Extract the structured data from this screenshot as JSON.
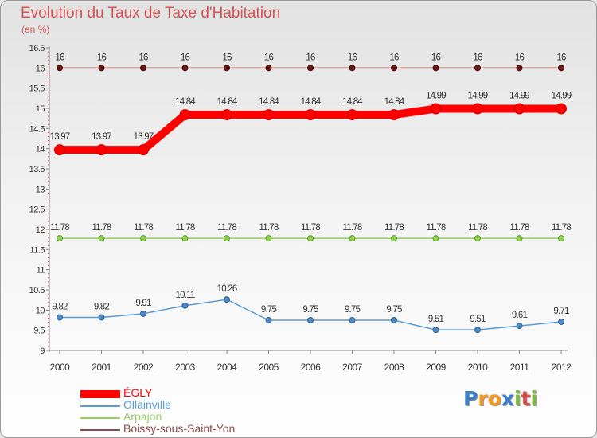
{
  "title": "Evolution du Taux de Taxe d'Habitation",
  "subtitle": "(en %)",
  "logo": {
    "letters": [
      "P",
      "r",
      "o",
      "x",
      "i",
      "t",
      "i"
    ],
    "colors": [
      "#3a7fc9",
      "#f29a20",
      "#f29a20",
      "#3a7fc9",
      "#7dbb3a",
      "#d94c4c",
      "#7dbb3a"
    ]
  },
  "chart_data": {
    "type": "line",
    "x": [
      "2000",
      "2001",
      "2002",
      "2003",
      "2004",
      "2005",
      "2006",
      "2007",
      "2008",
      "2009",
      "2010",
      "2011",
      "2012"
    ],
    "ylim": [
      9,
      16.5
    ],
    "yticks": [
      "9",
      "9.5",
      "10",
      "10.5",
      "11",
      "11.5",
      "12",
      "12.5",
      "13",
      "13.5",
      "14",
      "14.5",
      "15",
      "15.5",
      "16",
      "16.5"
    ],
    "grid": false,
    "legend_position": "bottom-left",
    "series": [
      {
        "name": "ÉGLY",
        "color": "#ff0000",
        "values": [
          13.97,
          13.97,
          13.97,
          14.84,
          14.84,
          14.84,
          14.84,
          14.84,
          14.84,
          14.99,
          14.99,
          14.99,
          14.99
        ],
        "labels": [
          "13.97",
          "13.97",
          "13.97",
          "14.84",
          "14.84",
          "14.84",
          "14.84",
          "14.84",
          "14.84",
          "14.99",
          "14.99",
          "14.99",
          "14.99"
        ]
      },
      {
        "name": "Ollainville",
        "color": "#5b9bd5",
        "values": [
          9.82,
          9.82,
          9.91,
          10.11,
          10.26,
          9.75,
          9.75,
          9.75,
          9.75,
          9.51,
          9.51,
          9.61,
          9.71
        ],
        "labels": [
          "9.82",
          "9.82",
          "9.91",
          "10.11",
          "10.26",
          "9.75",
          "9.75",
          "9.75",
          "9.75",
          "9.51",
          "9.51",
          "9.61",
          "9.71"
        ]
      },
      {
        "name": "Arpajon",
        "color": "#99cc66",
        "values": [
          11.78,
          11.78,
          11.78,
          11.78,
          11.78,
          11.78,
          11.78,
          11.78,
          11.78,
          11.78,
          11.78,
          11.78,
          11.78
        ],
        "labels": [
          "11.78",
          "11.78",
          "11.78",
          "11.78",
          "11.78",
          "11.78",
          "11.78",
          "11.78",
          "11.78",
          "11.78",
          "11.78",
          "11.78",
          "11.78"
        ]
      },
      {
        "name": "Boissy-sous-Saint-Yon",
        "color": "#8b4a4a",
        "values": [
          16,
          16,
          16,
          16,
          16,
          16,
          16,
          16,
          16,
          16,
          16,
          16,
          16
        ],
        "labels": [
          "16",
          "16",
          "16",
          "16",
          "16",
          "16",
          "16",
          "16",
          "16",
          "16",
          "16",
          "16",
          "16"
        ]
      }
    ]
  }
}
